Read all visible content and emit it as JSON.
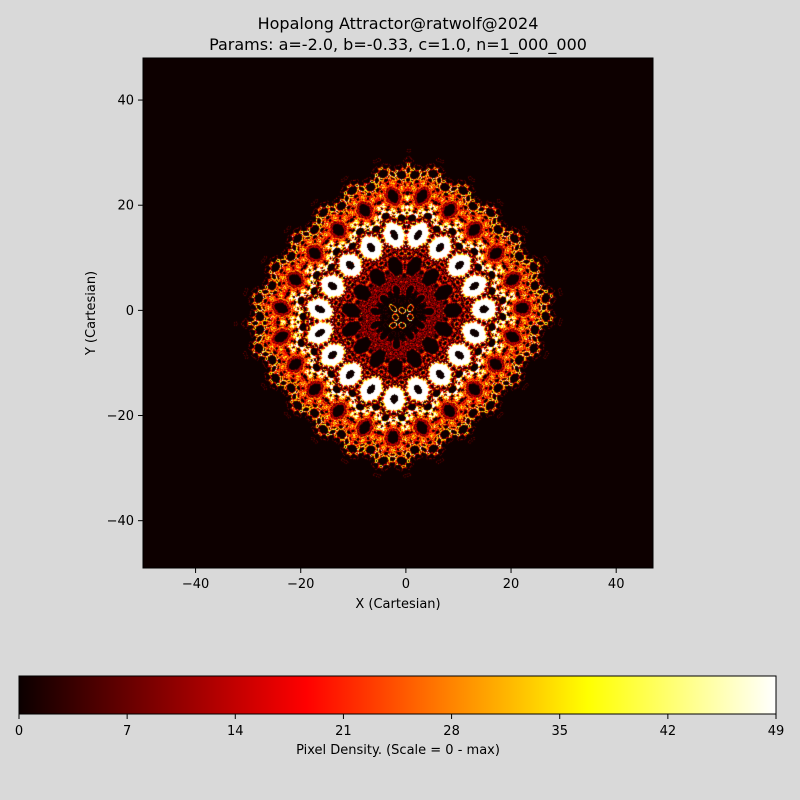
{
  "figure": {
    "background": "#d9d9d9",
    "title_line1": "Hopalong Attractor@ratwolf@2024",
    "title_line2": "Params: a=-2.0, b=-0.33, c=1.0, n=1_000_000"
  },
  "chart_data": {
    "type": "heatmap",
    "title": "Hopalong Attractor@ratwolf@2024",
    "subtitle": "Params: a=-2.0, b=-0.33, c=1.0, n=1_000_000",
    "xlabel": "X (Cartesian)",
    "ylabel": "Y (Cartesian)",
    "xlim": [
      -50,
      47
    ],
    "ylim": [
      -49,
      48
    ],
    "xticks": [
      -40,
      -20,
      0,
      20,
      40
    ],
    "yticks": [
      -40,
      -20,
      0,
      20,
      40
    ],
    "xtick_labels": [
      "−40",
      "−20",
      "0",
      "20",
      "40"
    ],
    "ytick_labels": [
      "−40",
      "−20",
      "0",
      "20",
      "40"
    ],
    "grid": false,
    "colormap": "hot",
    "background_color": "#0d0000",
    "attractor": {
      "a": -2.0,
      "b": -0.33,
      "c": 1.0,
      "n": 1000000
    },
    "colorbar": {
      "label": "Pixel Density. (Scale = 0 - max)",
      "orientation": "horizontal",
      "range": [
        0,
        49
      ],
      "ticks": [
        0,
        7,
        14,
        21,
        28,
        35,
        42,
        49
      ],
      "tick_labels": [
        "0",
        "7",
        "14",
        "21",
        "28",
        "35",
        "42",
        "49"
      ],
      "color_stops": [
        {
          "value": 0,
          "color": "#0b0000"
        },
        {
          "value": 18.6,
          "color": "#ff0000"
        },
        {
          "value": 36.8,
          "color": "#ffff00"
        },
        {
          "value": 49,
          "color": "#ffffff"
        }
      ]
    }
  }
}
